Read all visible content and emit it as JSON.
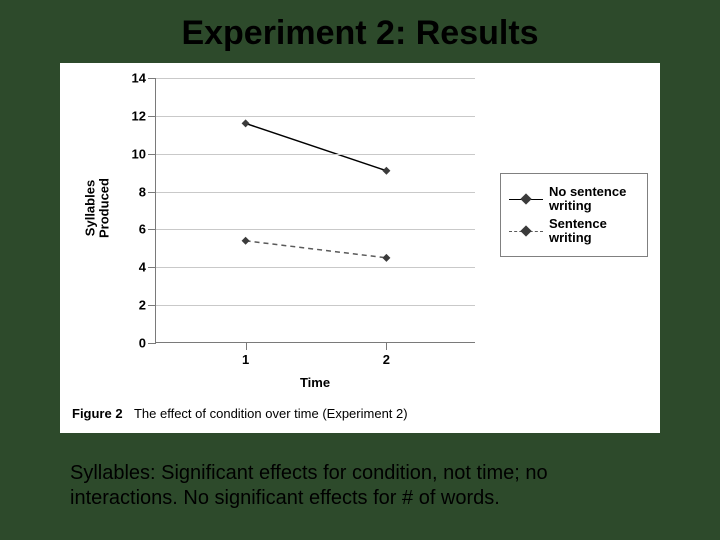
{
  "title": "Experiment 2: Results",
  "caption": "Syllables: Significant effects for condition, not time; no interactions. No significant effects for # of words.",
  "figure_caption_bold": "Figure 2",
  "figure_caption_rest": "The effect of condition over time (Experiment 2)",
  "chart": {
    "type": "line",
    "y_axis_title": "Syllables\nProduced",
    "x_axis_title": "Time",
    "ylim": [
      0,
      14
    ],
    "ytick_step": 2,
    "x_categories": [
      "1",
      "2"
    ],
    "background_color": "#ffffff",
    "grid_color": "#c9c9c9",
    "axis_color": "#7a7a7a",
    "label_fontsize": 13,
    "tick_fontsize": 13,
    "marker_shape": "diamond",
    "marker_size": 8,
    "marker_color": "#3b3b3b",
    "line_width": 1.5,
    "series": [
      {
        "name": "No sentence writing",
        "values": [
          11.6,
          9.1
        ],
        "color": "#000000",
        "dash": "solid"
      },
      {
        "name": "Sentence writing",
        "values": [
          5.4,
          4.5
        ],
        "color": "#5a5a5a",
        "dash": "dash"
      }
    ],
    "legend": {
      "position": "right"
    }
  }
}
